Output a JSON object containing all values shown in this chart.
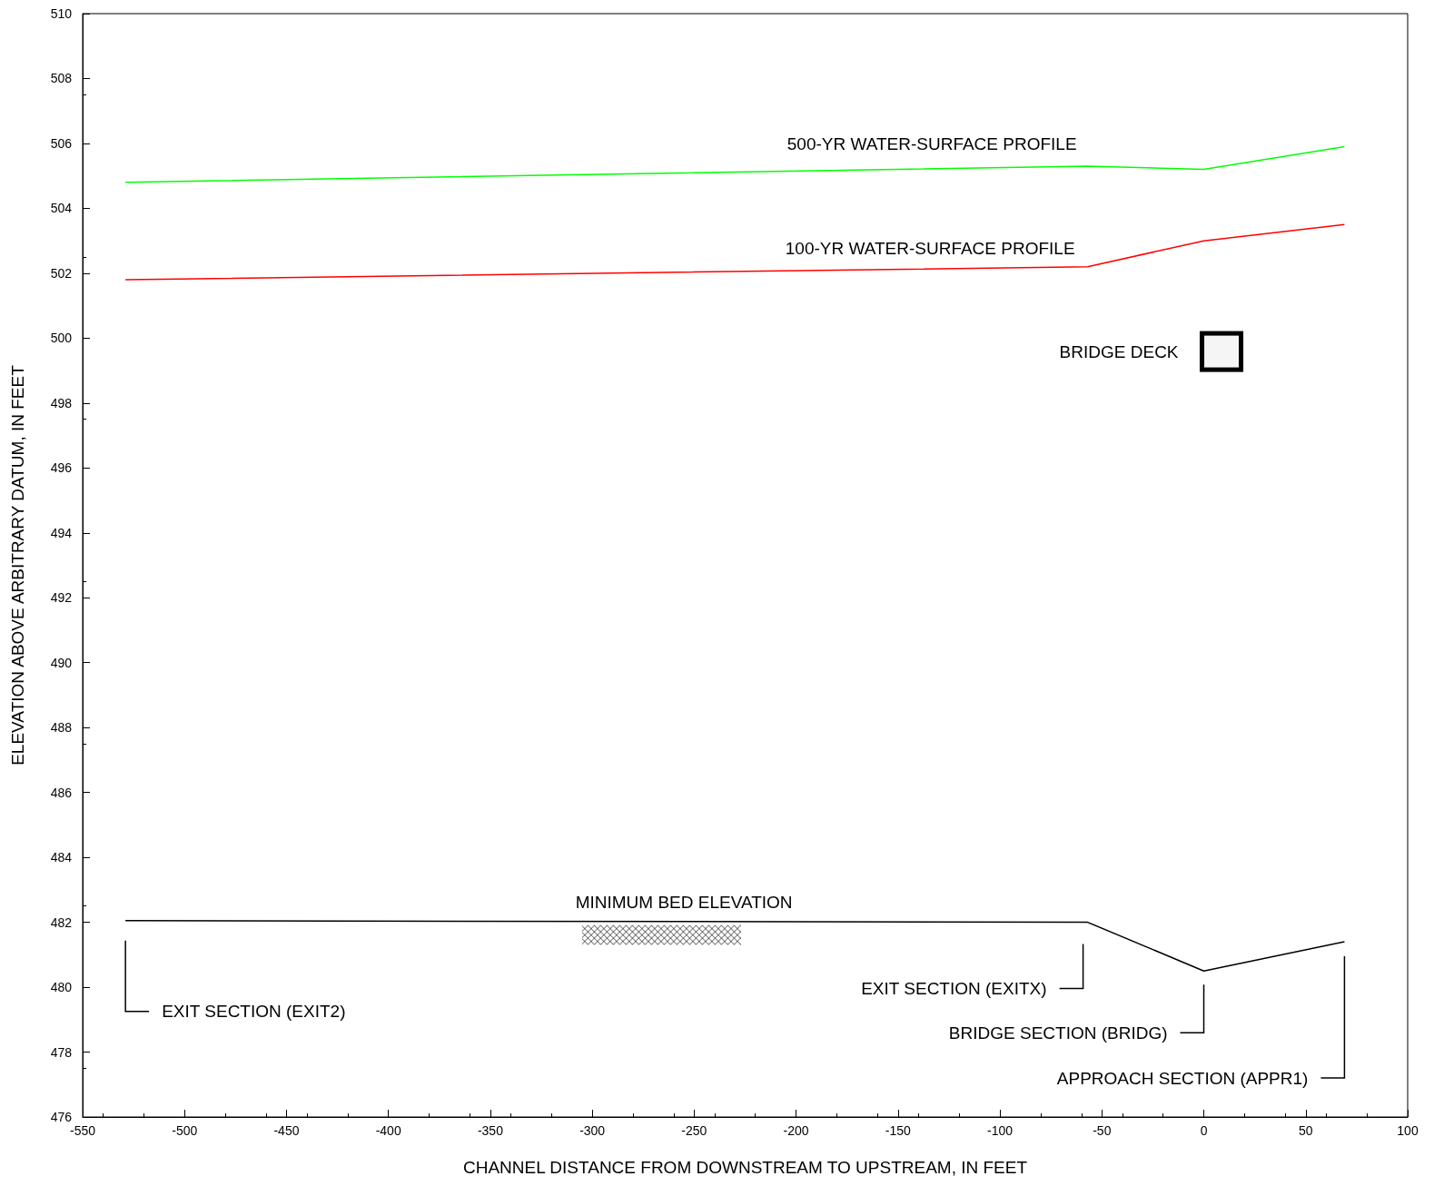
{
  "chart_data": {
    "type": "line",
    "xlabel": "CHANNEL DISTANCE FROM DOWNSTREAM TO UPSTREAM, IN FEET",
    "ylabel": "ELEVATION ABOVE ARBITRARY DATUM, IN FEET",
    "x": [
      -529,
      -57,
      0,
      69
    ],
    "series": [
      {
        "name": "500-YR WATER-SURFACE PROFILE",
        "color": "#00ff00",
        "values": [
          504.8,
          505.3,
          505.2,
          505.9
        ]
      },
      {
        "name": "100-YR WATER-SURFACE PROFILE",
        "color": "#ff0000",
        "values": [
          501.8,
          502.2,
          503.0,
          503.5
        ]
      },
      {
        "name": "MINIMUM BED ELEVATION",
        "color": "#000000",
        "values": [
          482.05,
          482.0,
          480.5,
          481.4
        ]
      }
    ],
    "annotations": [
      "EXIT SECTION (EXIT2)",
      "EXIT SECTION (EXITX)",
      "BRIDGE SECTION (BRIDG)",
      "APPROACH SECTION (APPR1)",
      "BRIDGE DECK"
    ],
    "xlim": [
      -550,
      100
    ],
    "xticks": [
      -550,
      -500,
      -450,
      -400,
      -350,
      -300,
      -250,
      -200,
      -150,
      -100,
      -50,
      0,
      50,
      100
    ],
    "ylim": [
      476,
      510
    ],
    "yticks": [
      476,
      478,
      480,
      482,
      484,
      486,
      488,
      490,
      492,
      494,
      496,
      498,
      500,
      502,
      504,
      506,
      508,
      510
    ],
    "grid": false,
    "legend": false,
    "marker": "none",
    "line_style": "solid"
  }
}
